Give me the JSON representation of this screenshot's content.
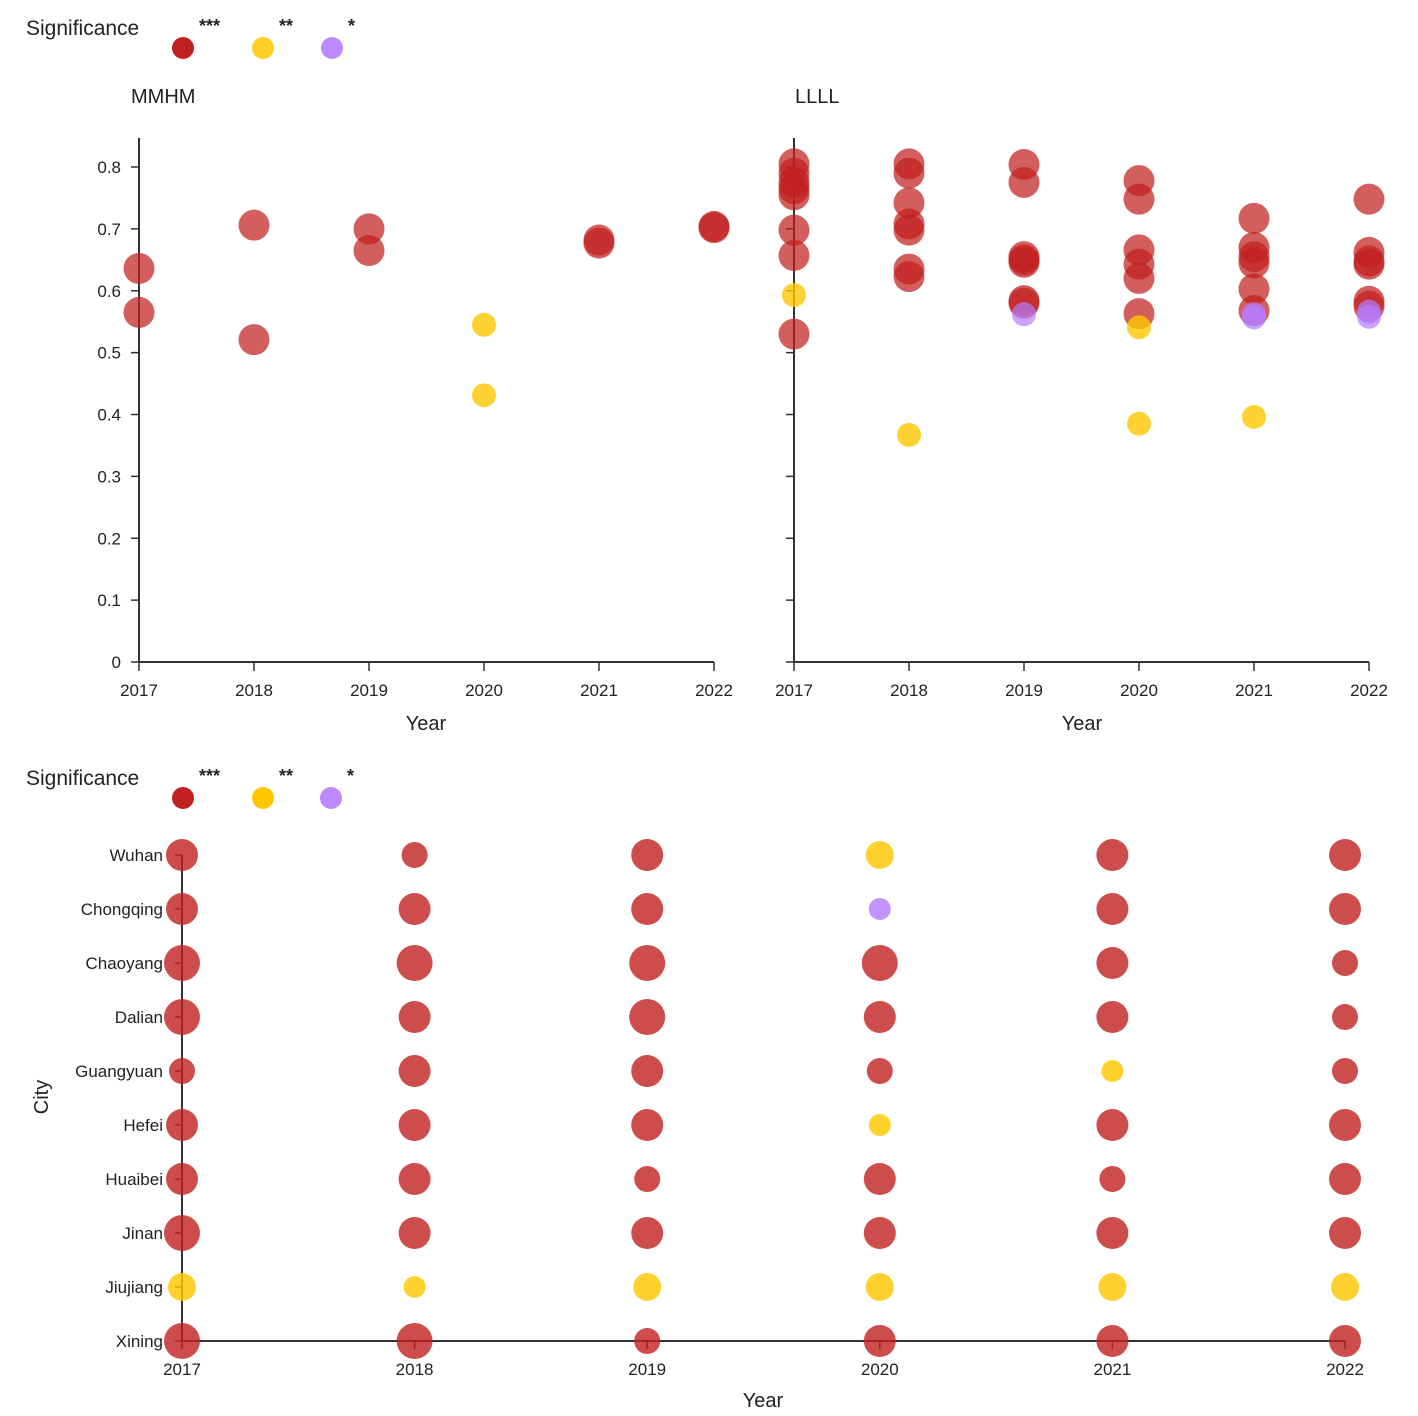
{
  "legend": {
    "title": "Significance",
    "levels": [
      {
        "label": "***",
        "color": "#c0201f",
        "key": "p3"
      },
      {
        "label": "**",
        "color": "#ffc700",
        "key": "p2"
      },
      {
        "label": "*",
        "color": "#b57cff",
        "key": "p1"
      }
    ]
  },
  "chart_data": [
    {
      "type": "scatter",
      "title": "MMHM",
      "xlabel": "Year",
      "ylabel": "",
      "x_ticks": [
        "2017",
        "2018",
        "2019",
        "2020",
        "2021",
        "2022"
      ],
      "y_ticks": [
        "0",
        "0.1",
        "0.2",
        "0.3",
        "0.4",
        "0.5",
        "0.6",
        "0.7",
        "0.8"
      ],
      "xlim": [
        2017,
        2022
      ],
      "ylim": [
        0,
        0.85
      ],
      "grid": false,
      "legend": "top-left",
      "points": [
        {
          "x": 2017,
          "y": 0.636,
          "sig": "***"
        },
        {
          "x": 2017,
          "y": 0.565,
          "sig": "***"
        },
        {
          "x": 2018,
          "y": 0.706,
          "sig": "***"
        },
        {
          "x": 2018,
          "y": 0.521,
          "sig": "***"
        },
        {
          "x": 2019,
          "y": 0.7,
          "sig": "***"
        },
        {
          "x": 2019,
          "y": 0.665,
          "sig": "***"
        },
        {
          "x": 2020,
          "y": 0.545,
          "sig": "**"
        },
        {
          "x": 2020,
          "y": 0.431,
          "sig": "**"
        },
        {
          "x": 2021,
          "y": 0.682,
          "sig": "***"
        },
        {
          "x": 2021,
          "y": 0.677,
          "sig": "***"
        },
        {
          "x": 2022,
          "y": 0.704,
          "sig": "***"
        },
        {
          "x": 2022,
          "y": 0.702,
          "sig": "***"
        }
      ]
    },
    {
      "type": "scatter",
      "title": "LLLL",
      "xlabel": "Year",
      "ylabel": "",
      "x_ticks": [
        "2017",
        "2018",
        "2019",
        "2020",
        "2021",
        "2022"
      ],
      "xlim": [
        2017,
        2022
      ],
      "ylim": [
        0,
        0.85
      ],
      "grid": false,
      "points": [
        {
          "x": 2017,
          "y": 0.805,
          "sig": "***"
        },
        {
          "x": 2017,
          "y": 0.79,
          "sig": "***"
        },
        {
          "x": 2017,
          "y": 0.775,
          "sig": "***"
        },
        {
          "x": 2017,
          "y": 0.765,
          "sig": "***"
        },
        {
          "x": 2017,
          "y": 0.755,
          "sig": "***"
        },
        {
          "x": 2017,
          "y": 0.698,
          "sig": "***"
        },
        {
          "x": 2017,
          "y": 0.657,
          "sig": "***"
        },
        {
          "x": 2017,
          "y": 0.593,
          "sig": "**"
        },
        {
          "x": 2017,
          "y": 0.53,
          "sig": "***"
        },
        {
          "x": 2018,
          "y": 0.805,
          "sig": "***"
        },
        {
          "x": 2018,
          "y": 0.79,
          "sig": "***"
        },
        {
          "x": 2018,
          "y": 0.742,
          "sig": "***"
        },
        {
          "x": 2018,
          "y": 0.708,
          "sig": "***"
        },
        {
          "x": 2018,
          "y": 0.698,
          "sig": "***"
        },
        {
          "x": 2018,
          "y": 0.635,
          "sig": "***"
        },
        {
          "x": 2018,
          "y": 0.623,
          "sig": "***"
        },
        {
          "x": 2018,
          "y": 0.367,
          "sig": "**"
        },
        {
          "x": 2019,
          "y": 0.804,
          "sig": "***"
        },
        {
          "x": 2019,
          "y": 0.775,
          "sig": "***"
        },
        {
          "x": 2019,
          "y": 0.655,
          "sig": "***"
        },
        {
          "x": 2019,
          "y": 0.65,
          "sig": "***"
        },
        {
          "x": 2019,
          "y": 0.646,
          "sig": "***"
        },
        {
          "x": 2019,
          "y": 0.584,
          "sig": "***"
        },
        {
          "x": 2019,
          "y": 0.58,
          "sig": "***"
        },
        {
          "x": 2019,
          "y": 0.562,
          "sig": "*"
        },
        {
          "x": 2020,
          "y": 0.778,
          "sig": "***"
        },
        {
          "x": 2020,
          "y": 0.748,
          "sig": "***"
        },
        {
          "x": 2020,
          "y": 0.666,
          "sig": "***"
        },
        {
          "x": 2020,
          "y": 0.643,
          "sig": "***"
        },
        {
          "x": 2020,
          "y": 0.62,
          "sig": "***"
        },
        {
          "x": 2020,
          "y": 0.563,
          "sig": "***"
        },
        {
          "x": 2020,
          "y": 0.541,
          "sig": "**"
        },
        {
          "x": 2020,
          "y": 0.385,
          "sig": "**"
        },
        {
          "x": 2021,
          "y": 0.717,
          "sig": "***"
        },
        {
          "x": 2021,
          "y": 0.67,
          "sig": "***"
        },
        {
          "x": 2021,
          "y": 0.655,
          "sig": "***"
        },
        {
          "x": 2021,
          "y": 0.645,
          "sig": "***"
        },
        {
          "x": 2021,
          "y": 0.603,
          "sig": "***"
        },
        {
          "x": 2021,
          "y": 0.568,
          "sig": "***"
        },
        {
          "x": 2021,
          "y": 0.562,
          "sig": "*"
        },
        {
          "x": 2021,
          "y": 0.557,
          "sig": "*"
        },
        {
          "x": 2021,
          "y": 0.396,
          "sig": "**"
        },
        {
          "x": 2022,
          "y": 0.748,
          "sig": "***"
        },
        {
          "x": 2022,
          "y": 0.662,
          "sig": "***"
        },
        {
          "x": 2022,
          "y": 0.648,
          "sig": "***"
        },
        {
          "x": 2022,
          "y": 0.643,
          "sig": "***"
        },
        {
          "x": 2022,
          "y": 0.583,
          "sig": "***"
        },
        {
          "x": 2022,
          "y": 0.575,
          "sig": "***"
        },
        {
          "x": 2022,
          "y": 0.566,
          "sig": "*"
        },
        {
          "x": 2022,
          "y": 0.558,
          "sig": "*"
        }
      ]
    },
    {
      "type": "scatter",
      "title": "",
      "xlabel": "Year",
      "ylabel": "City",
      "x_ticks": [
        "2017",
        "2018",
        "2019",
        "2020",
        "2021",
        "2022"
      ],
      "categories": [
        "Wuhan",
        "Chongqing",
        "Chaoyang",
        "Dalian",
        "Guangyuan",
        "Hefei",
        "Huaibei",
        "Jinan",
        "Jiujiang",
        "Xining"
      ],
      "size_note": "marker size varies; relative size 1-3",
      "points": [
        {
          "city": "Wuhan",
          "year": 2017,
          "sig": "***",
          "size": 2
        },
        {
          "city": "Wuhan",
          "year": 2018,
          "sig": "***",
          "size": 1
        },
        {
          "city": "Wuhan",
          "year": 2019,
          "sig": "***",
          "size": 2
        },
        {
          "city": "Wuhan",
          "year": 2020,
          "sig": "**",
          "size": 2
        },
        {
          "city": "Wuhan",
          "year": 2021,
          "sig": "***",
          "size": 2
        },
        {
          "city": "Wuhan",
          "year": 2022,
          "sig": "***",
          "size": 2
        },
        {
          "city": "Chongqing",
          "year": 2017,
          "sig": "***",
          "size": 2
        },
        {
          "city": "Chongqing",
          "year": 2018,
          "sig": "***",
          "size": 2
        },
        {
          "city": "Chongqing",
          "year": 2019,
          "sig": "***",
          "size": 2
        },
        {
          "city": "Chongqing",
          "year": 2020,
          "sig": "*",
          "size": 1
        },
        {
          "city": "Chongqing",
          "year": 2021,
          "sig": "***",
          "size": 2
        },
        {
          "city": "Chongqing",
          "year": 2022,
          "sig": "***",
          "size": 2
        },
        {
          "city": "Chaoyang",
          "year": 2017,
          "sig": "***",
          "size": 3
        },
        {
          "city": "Chaoyang",
          "year": 2018,
          "sig": "***",
          "size": 3
        },
        {
          "city": "Chaoyang",
          "year": 2019,
          "sig": "***",
          "size": 3
        },
        {
          "city": "Chaoyang",
          "year": 2020,
          "sig": "***",
          "size": 3
        },
        {
          "city": "Chaoyang",
          "year": 2021,
          "sig": "***",
          "size": 2
        },
        {
          "city": "Chaoyang",
          "year": 2022,
          "sig": "***",
          "size": 1
        },
        {
          "city": "Dalian",
          "year": 2017,
          "sig": "***",
          "size": 3
        },
        {
          "city": "Dalian",
          "year": 2018,
          "sig": "***",
          "size": 2
        },
        {
          "city": "Dalian",
          "year": 2019,
          "sig": "***",
          "size": 3
        },
        {
          "city": "Dalian",
          "year": 2020,
          "sig": "***",
          "size": 2
        },
        {
          "city": "Dalian",
          "year": 2021,
          "sig": "***",
          "size": 2
        },
        {
          "city": "Dalian",
          "year": 2022,
          "sig": "***",
          "size": 1
        },
        {
          "city": "Guangyuan",
          "year": 2017,
          "sig": "***",
          "size": 1
        },
        {
          "city": "Guangyuan",
          "year": 2018,
          "sig": "***",
          "size": 2
        },
        {
          "city": "Guangyuan",
          "year": 2019,
          "sig": "***",
          "size": 2
        },
        {
          "city": "Guangyuan",
          "year": 2020,
          "sig": "***",
          "size": 1
        },
        {
          "city": "Guangyuan",
          "year": 2021,
          "sig": "**",
          "size": 1
        },
        {
          "city": "Guangyuan",
          "year": 2022,
          "sig": "***",
          "size": 1
        },
        {
          "city": "Hefei",
          "year": 2017,
          "sig": "***",
          "size": 2
        },
        {
          "city": "Hefei",
          "year": 2018,
          "sig": "***",
          "size": 2
        },
        {
          "city": "Hefei",
          "year": 2019,
          "sig": "***",
          "size": 2
        },
        {
          "city": "Hefei",
          "year": 2020,
          "sig": "**",
          "size": 1
        },
        {
          "city": "Hefei",
          "year": 2021,
          "sig": "***",
          "size": 2
        },
        {
          "city": "Hefei",
          "year": 2022,
          "sig": "***",
          "size": 2
        },
        {
          "city": "Huaibei",
          "year": 2017,
          "sig": "***",
          "size": 2
        },
        {
          "city": "Huaibei",
          "year": 2018,
          "sig": "***",
          "size": 2
        },
        {
          "city": "Huaibei",
          "year": 2019,
          "sig": "***",
          "size": 1
        },
        {
          "city": "Huaibei",
          "year": 2020,
          "sig": "***",
          "size": 2
        },
        {
          "city": "Huaibei",
          "year": 2021,
          "sig": "***",
          "size": 1
        },
        {
          "city": "Huaibei",
          "year": 2022,
          "sig": "***",
          "size": 2
        },
        {
          "city": "Jinan",
          "year": 2017,
          "sig": "***",
          "size": 3
        },
        {
          "city": "Jinan",
          "year": 2018,
          "sig": "***",
          "size": 2
        },
        {
          "city": "Jinan",
          "year": 2019,
          "sig": "***",
          "size": 2
        },
        {
          "city": "Jinan",
          "year": 2020,
          "sig": "***",
          "size": 2
        },
        {
          "city": "Jinan",
          "year": 2021,
          "sig": "***",
          "size": 2
        },
        {
          "city": "Jinan",
          "year": 2022,
          "sig": "***",
          "size": 2
        },
        {
          "city": "Jiujiang",
          "year": 2017,
          "sig": "**",
          "size": 2
        },
        {
          "city": "Jiujiang",
          "year": 2018,
          "sig": "**",
          "size": 1
        },
        {
          "city": "Jiujiang",
          "year": 2019,
          "sig": "**",
          "size": 2
        },
        {
          "city": "Jiujiang",
          "year": 2020,
          "sig": "**",
          "size": 2
        },
        {
          "city": "Jiujiang",
          "year": 2021,
          "sig": "**",
          "size": 2
        },
        {
          "city": "Jiujiang",
          "year": 2022,
          "sig": "**",
          "size": 2
        },
        {
          "city": "Xining",
          "year": 2017,
          "sig": "***",
          "size": 3
        },
        {
          "city": "Xining",
          "year": 2018,
          "sig": "***",
          "size": 3
        },
        {
          "city": "Xining",
          "year": 2019,
          "sig": "***",
          "size": 1
        },
        {
          "city": "Xining",
          "year": 2020,
          "sig": "***",
          "size": 2
        },
        {
          "city": "Xining",
          "year": 2021,
          "sig": "***",
          "size": 2
        },
        {
          "city": "Xining",
          "year": 2022,
          "sig": "***",
          "size": 2
        }
      ]
    }
  ]
}
